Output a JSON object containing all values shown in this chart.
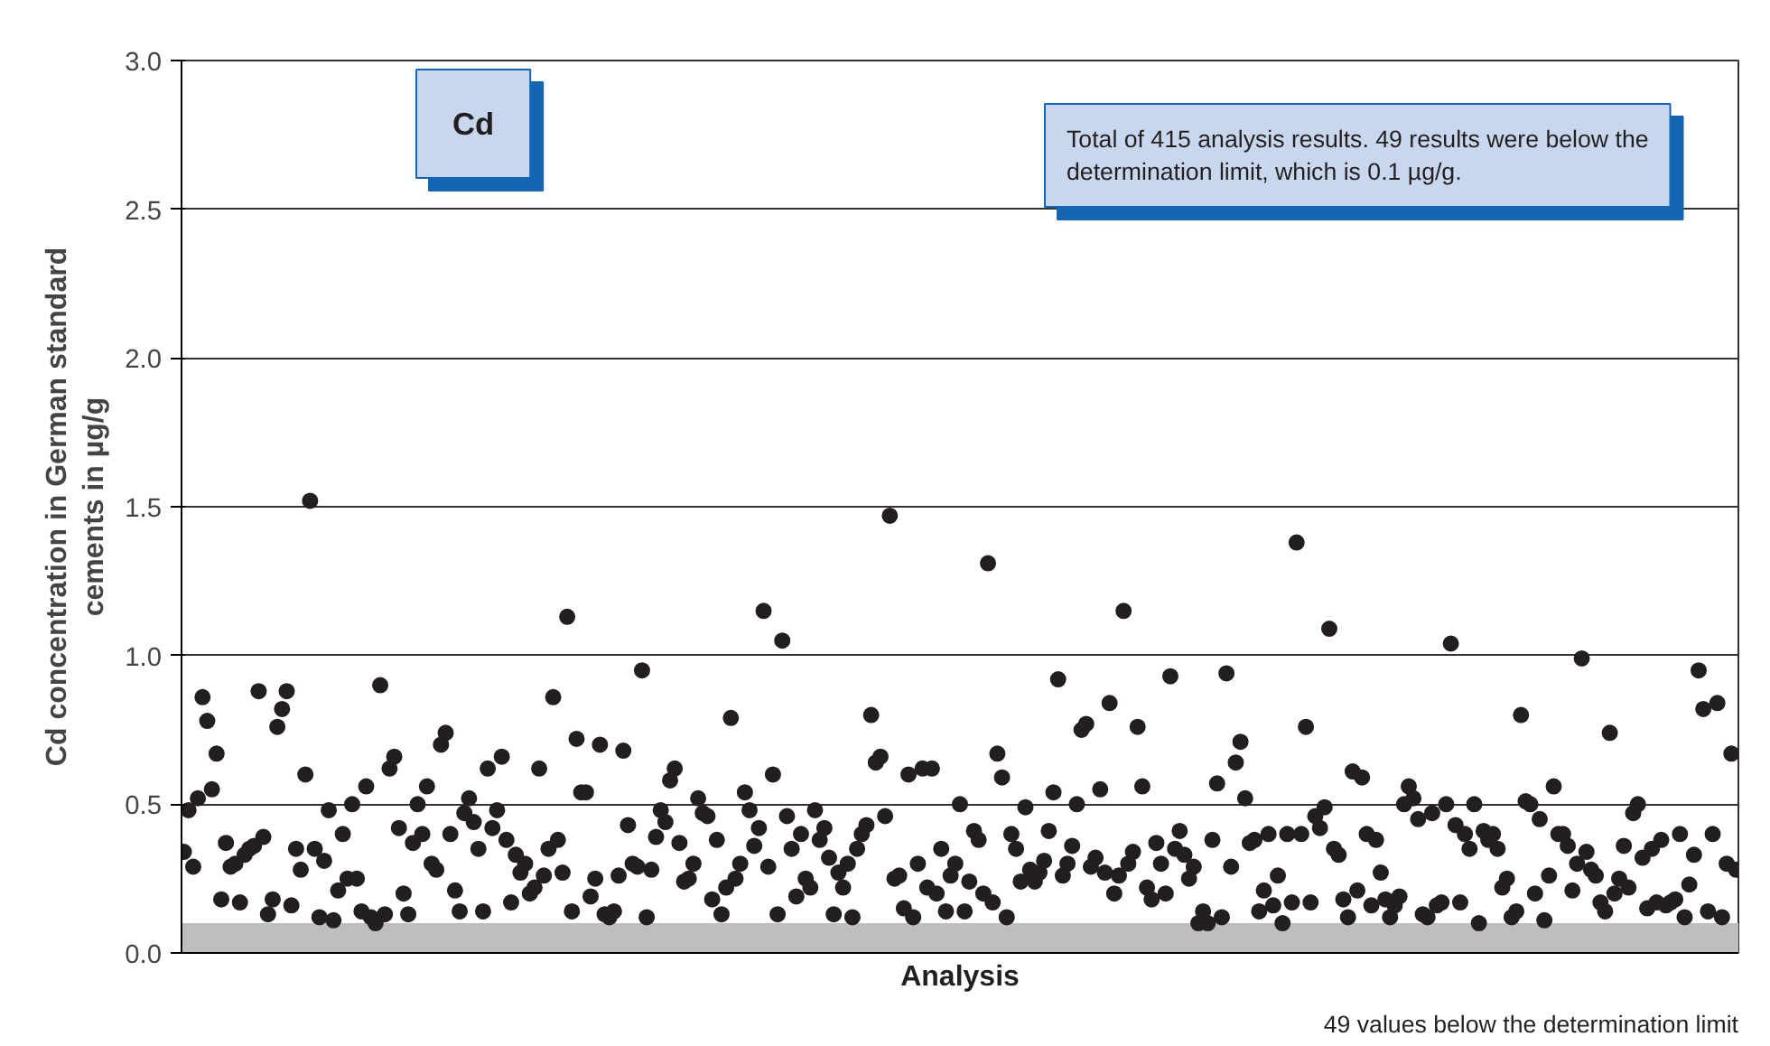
{
  "chart_data": {
    "type": "scatter",
    "xlabel": "Analysis",
    "ylabel": "Cd concentration in German standard\ncements in µg/g",
    "annotations": [
      "Cd",
      "Total of 415 analysis results. 49 results were below the determination limit, which is 0.1 µg/g."
    ],
    "categories": [
      null,
      null,
      null,
      null,
      null,
      null,
      null,
      null,
      null,
      null,
      null,
      null,
      null,
      null,
      null,
      null,
      null,
      null,
      null,
      null,
      null,
      null,
      null,
      null,
      null,
      null,
      null,
      null,
      null,
      null,
      null,
      null,
      null,
      null,
      null,
      null,
      null,
      null,
      null,
      null,
      null,
      null,
      null,
      null,
      null,
      null,
      null,
      null,
      null,
      null,
      null,
      null,
      null,
      null,
      null,
      null,
      null,
      null,
      null,
      null,
      null,
      null,
      null,
      null,
      null,
      null,
      null,
      null,
      null,
      null,
      null,
      null,
      null,
      null,
      null,
      null,
      null,
      null,
      null,
      null,
      null,
      null,
      null,
      null,
      null,
      null,
      null,
      null,
      null,
      null,
      null,
      null,
      null,
      null,
      null,
      null,
      null,
      null,
      null,
      null,
      null,
      null,
      null,
      null,
      null,
      null,
      null,
      null,
      null,
      null,
      null,
      null,
      null,
      null,
      null,
      null,
      null,
      null,
      null,
      null,
      null,
      null,
      null,
      null,
      null,
      null,
      null,
      null,
      null,
      null,
      null,
      null,
      null,
      null,
      null,
      null,
      null,
      null,
      null,
      null,
      null,
      null,
      null,
      null,
      null,
      null,
      null,
      null,
      null,
      null,
      null,
      null,
      null,
      null,
      null,
      null,
      null,
      null,
      null,
      null,
      null,
      null,
      null,
      null,
      null,
      null,
      null,
      null,
      null,
      null,
      null,
      null,
      null,
      null,
      null,
      null,
      null,
      null,
      null,
      null,
      null,
      null,
      null,
      null,
      null,
      null,
      null,
      null,
      null,
      null,
      null,
      null,
      null,
      null,
      null,
      null,
      null,
      null,
      null,
      null,
      null,
      null,
      null,
      null,
      null,
      null,
      null,
      null,
      null,
      null,
      null,
      null,
      null,
      null,
      null,
      null,
      null,
      null,
      null,
      null,
      null,
      null,
      null,
      null,
      null,
      null,
      null,
      null,
      null,
      null,
      null,
      null,
      null,
      null,
      null,
      null,
      null,
      null,
      null,
      null,
      null,
      null,
      null,
      null,
      null,
      null,
      null,
      null,
      null,
      null,
      null,
      null,
      null,
      null,
      null,
      null,
      null,
      null,
      null,
      null,
      null,
      null,
      null,
      null,
      null,
      null,
      null,
      null,
      null,
      null,
      null,
      null,
      null,
      null,
      null,
      null,
      null,
      null,
      null,
      null,
      null,
      null,
      null,
      null,
      null,
      null,
      null,
      null,
      null,
      null,
      null,
      null,
      null,
      null,
      null,
      null,
      null,
      null,
      null,
      null,
      null,
      null,
      null,
      null,
      null,
      null,
      null,
      null,
      null,
      null,
      null,
      null,
      null,
      null,
      null,
      null,
      null,
      null,
      null,
      null,
      null,
      null,
      null,
      null,
      null,
      null,
      null,
      null,
      null,
      null,
      null,
      null,
      null
    ],
    "values": [
      0.34,
      0.48,
      0.29,
      0.52,
      0.86,
      0.78,
      0.55,
      0.67,
      0.18,
      0.37,
      0.29,
      0.3,
      0.17,
      0.33,
      0.35,
      0.36,
      0.88,
      0.39,
      0.13,
      0.18,
      0.76,
      0.82,
      0.88,
      0.16,
      0.35,
      0.28,
      0.6,
      1.52,
      0.35,
      0.12,
      0.31,
      0.48,
      0.11,
      0.21,
      0.4,
      0.25,
      0.5,
      0.25,
      0.14,
      0.56,
      0.12,
      0.1,
      0.9,
      0.13,
      0.62,
      0.66,
      0.42,
      0.2,
      0.13,
      0.37,
      0.5,
      0.4,
      0.56,
      0.3,
      0.28,
      0.7,
      0.74,
      0.4,
      0.21,
      0.14,
      0.47,
      0.52,
      0.44,
      0.35,
      0.14,
      0.62,
      0.42,
      0.48,
      0.66,
      0.38,
      0.17,
      0.33,
      0.27,
      0.3,
      0.2,
      0.22,
      0.62,
      0.26,
      0.35,
      0.86,
      0.38,
      0.27,
      1.13,
      0.14,
      0.72,
      0.54,
      0.54,
      0.19,
      0.25,
      0.7,
      0.13,
      0.12,
      0.14,
      0.26,
      0.68,
      0.43,
      0.3,
      0.29,
      0.95,
      0.12,
      0.28,
      0.39,
      0.48,
      0.44,
      0.58,
      0.62,
      0.37,
      0.24,
      0.25,
      0.3,
      0.52,
      0.47,
      0.46,
      0.18,
      0.38,
      0.13,
      0.22,
      0.79,
      0.25,
      0.3,
      0.54,
      0.48,
      0.36,
      0.42,
      1.15,
      0.29,
      0.6,
      0.13,
      1.05,
      0.46,
      0.35,
      0.19,
      0.4,
      0.25,
      0.22,
      0.48,
      0.38,
      0.42,
      0.32,
      0.13,
      0.27,
      0.22,
      0.3,
      0.12,
      0.35,
      0.4,
      0.43,
      0.8,
      0.64,
      0.66,
      0.46,
      1.47,
      0.25,
      0.26,
      0.15,
      0.6,
      0.12,
      0.3,
      0.62,
      0.22,
      0.62,
      0.2,
      0.35,
      0.14,
      0.26,
      0.3,
      0.5,
      0.14,
      0.24,
      0.41,
      0.38,
      0.2,
      1.31,
      0.17,
      0.67,
      0.59,
      0.12,
      0.4,
      0.35,
      0.24,
      0.49,
      0.28,
      0.24,
      0.27,
      0.31,
      0.41,
      0.54,
      0.92,
      0.26,
      0.3,
      0.36,
      0.5,
      0.75,
      0.77,
      0.29,
      0.32,
      0.55,
      0.27,
      0.84,
      0.2,
      0.26,
      1.15,
      0.3,
      0.34,
      0.76,
      0.56,
      0.22,
      0.18,
      0.37,
      0.3,
      0.2,
      0.93,
      0.35,
      0.41,
      0.33,
      0.25,
      0.29,
      0.1,
      0.14,
      0.1,
      0.38,
      0.57,
      0.12,
      0.94,
      0.29,
      0.64,
      0.71,
      0.52,
      0.37,
      0.38,
      0.14,
      0.21,
      0.4,
      0.16,
      0.26,
      0.1,
      0.4,
      0.17,
      1.38,
      0.4,
      0.76,
      0.17,
      0.46,
      0.42,
      0.49,
      1.09,
      0.35,
      0.33,
      0.18,
      0.12,
      0.61,
      0.21,
      0.59,
      0.4,
      0.16,
      0.38,
      0.27,
      0.18,
      0.12,
      0.16,
      0.19,
      0.5,
      0.56,
      0.52,
      0.45,
      0.13,
      0.12,
      0.47,
      0.16,
      0.17,
      0.5,
      1.04,
      0.43,
      0.17,
      0.4,
      0.35,
      0.5,
      0.1,
      0.41,
      0.38,
      0.4,
      0.35,
      0.22,
      0.25,
      0.12,
      0.14,
      0.8,
      0.51,
      0.5,
      0.2,
      0.45,
      0.11,
      0.26,
      0.56,
      0.4,
      0.4,
      0.36,
      0.21,
      0.3,
      0.99,
      0.34,
      0.28,
      0.26,
      0.17,
      0.14,
      0.74,
      0.2,
      0.25,
      0.36,
      0.22,
      0.47,
      0.5,
      0.32,
      0.15,
      0.35,
      0.17,
      0.38,
      0.16,
      0.17,
      0.18,
      0.4,
      0.12,
      0.23,
      0.33,
      0.95,
      0.82,
      0.14,
      0.4,
      0.84,
      0.12,
      0.3,
      0.67,
      0.28
    ],
    "color": "#231f20",
    "marker": "circle",
    "ylim": [
      0,
      3.0
    ],
    "yticks": [
      {
        "value": 0,
        "label": "0.0"
      },
      {
        "value": 0.5,
        "label": "0.5"
      },
      {
        "value": 1.0,
        "label": "1.0"
      },
      {
        "value": 1.5,
        "label": "1.5"
      },
      {
        "value": 2.0,
        "label": "2.0"
      },
      {
        "value": 2.5,
        "label": "2.5"
      },
      {
        "value": 3.0,
        "label": "3.0"
      }
    ],
    "bands": [
      {
        "axis": "y",
        "from": 0,
        "to": 0.1,
        "label": "49 values below the determination limit",
        "color": "#bcbec0"
      }
    ],
    "grid": "y",
    "tick_labels": "y"
  }
}
